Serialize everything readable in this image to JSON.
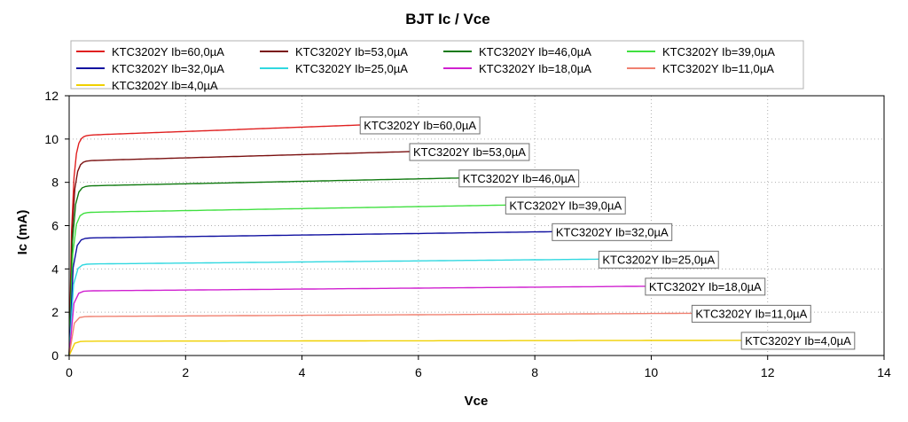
{
  "chart_data": {
    "type": "line",
    "title": "BJT Ic / Vce",
    "xlabel": "Vce",
    "ylabel": "Ic (mA)",
    "xlim": [
      0,
      14
    ],
    "ylim": [
      0,
      12
    ],
    "xticks": [
      "0",
      "2",
      "4",
      "6",
      "8",
      "10",
      "12",
      "14"
    ],
    "yticks": [
      "0",
      "2",
      "4",
      "6",
      "8",
      "10",
      "12"
    ],
    "grid": true,
    "legend_position": "top",
    "series": [
      {
        "name": "KTC3202Y Ib=60,0µA",
        "color": "#e02020",
        "x_end": 5.0,
        "y_knee": 10.15,
        "y_end": 10.65
      },
      {
        "name": "KTC3202Y Ib=53,0µA",
        "color": "#7a1010",
        "x_end": 5.85,
        "y_knee": 8.98,
        "y_end": 9.42
      },
      {
        "name": "KTC3202Y Ib=46,0µA",
        "color": "#107a10",
        "x_end": 6.7,
        "y_knee": 7.82,
        "y_end": 8.2
      },
      {
        "name": "KTC3202Y Ib=39,0µA",
        "color": "#40e040",
        "x_end": 7.5,
        "y_knee": 6.6,
        "y_end": 6.95
      },
      {
        "name": "KTC3202Y Ib=32,0µA",
        "color": "#1010a0",
        "x_end": 8.3,
        "y_knee": 5.42,
        "y_end": 5.72
      },
      {
        "name": "KTC3202Y Ib=25,0µA",
        "color": "#30d8e0",
        "x_end": 9.1,
        "y_knee": 4.22,
        "y_end": 4.45
      },
      {
        "name": "KTC3202Y Ib=18,0µA",
        "color": "#d020d0",
        "x_end": 9.9,
        "y_knee": 2.98,
        "y_end": 3.2
      },
      {
        "name": "KTC3202Y Ib=11,0µA",
        "color": "#f08070",
        "x_end": 10.7,
        "y_knee": 1.8,
        "y_end": 1.95
      },
      {
        "name": "KTC3202Y Ib=4,0µA",
        "color": "#f0d000",
        "x_end": 11.55,
        "y_knee": 0.66,
        "y_end": 0.7
      }
    ]
  }
}
